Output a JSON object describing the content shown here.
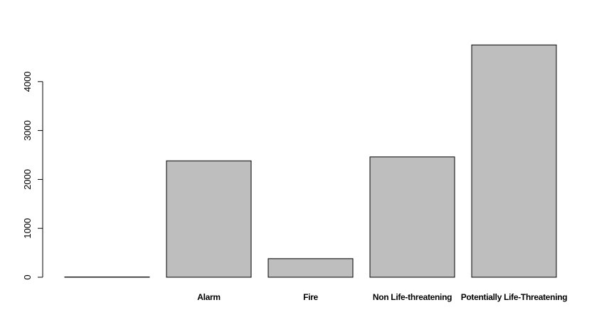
{
  "chart_data": {
    "type": "bar",
    "categories": [
      "",
      "Alarm",
      "Fire",
      "Non Life-threatening",
      "Potentially Life-Threatening"
    ],
    "values": [
      5,
      2380,
      380,
      2460,
      4750
    ],
    "title": "",
    "xlabel": "",
    "ylabel": "",
    "yticks": [
      0,
      1000,
      2000,
      3000,
      4000
    ],
    "ytick_labels": [
      "0",
      "1000",
      "2000",
      "3000",
      "4000"
    ],
    "ylim": [
      0,
      4800
    ],
    "grid": false,
    "bar_color": "#bebebe",
    "border_color": "#000000"
  }
}
